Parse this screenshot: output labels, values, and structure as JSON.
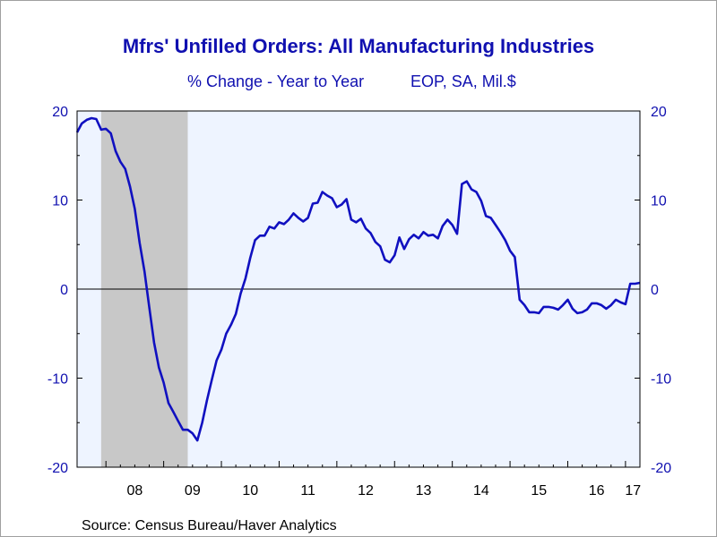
{
  "chart_data": {
    "type": "line",
    "title": "Mfrs' Unfilled Orders: All Manufacturing Industries",
    "subtitle_left": "% Change - Year to Year",
    "subtitle_right": "EOP, SA, Mil.$",
    "source": "Source:  Census Bureau/Haver Analytics",
    "ylim": [
      -20,
      20
    ],
    "yticks": [
      20,
      10,
      0,
      -10,
      -20
    ],
    "xlim": [
      2007.5,
      2017.25
    ],
    "xtick_labels": [
      "08",
      "09",
      "10",
      "11",
      "12",
      "13",
      "14",
      "15",
      "16",
      "17"
    ],
    "recession": [
      2007.917,
      2009.417
    ],
    "grid": false,
    "colors": {
      "line": "#1010c0",
      "plot_bg": "#eef4ff",
      "recession": "#c8c8c8",
      "text": "#1010b0"
    },
    "series": [
      {
        "x": [
          2007.5,
          2007.583,
          2007.667,
          2007.75,
          2007.833,
          2007.917,
          2008.0,
          2008.083,
          2008.167,
          2008.25,
          2008.333,
          2008.417,
          2008.5,
          2008.583,
          2008.667,
          2008.75,
          2008.833,
          2008.917,
          2009.0,
          2009.083,
          2009.167,
          2009.25,
          2009.333,
          2009.417,
          2009.5,
          2009.583,
          2009.667,
          2009.75,
          2009.833,
          2009.917,
          2010.0,
          2010.083,
          2010.167,
          2010.25,
          2010.333,
          2010.417,
          2010.5,
          2010.583,
          2010.667,
          2010.75,
          2010.833,
          2010.917,
          2011.0,
          2011.083,
          2011.167,
          2011.25,
          2011.333,
          2011.417,
          2011.5,
          2011.583,
          2011.667,
          2011.75,
          2011.833,
          2011.917,
          2012.0,
          2012.083,
          2012.167,
          2012.25,
          2012.333,
          2012.417,
          2012.5,
          2012.583,
          2012.667,
          2012.75,
          2012.833,
          2012.917,
          2013.0,
          2013.083,
          2013.167,
          2013.25,
          2013.333,
          2013.417,
          2013.5,
          2013.583,
          2013.667,
          2013.75,
          2013.833,
          2013.917,
          2014.0,
          2014.083,
          2014.167,
          2014.25,
          2014.333,
          2014.417,
          2014.5,
          2014.583,
          2014.667,
          2014.75,
          2014.833,
          2014.917,
          2015.0,
          2015.083,
          2015.167,
          2015.25,
          2015.333,
          2015.417,
          2015.5,
          2015.583,
          2015.667,
          2015.75,
          2015.833,
          2015.917,
          2016.0,
          2016.083,
          2016.167,
          2016.25,
          2016.333,
          2016.417,
          2016.5,
          2016.583,
          2016.667,
          2016.75,
          2016.833,
          2016.917,
          2017.0,
          2017.083,
          2017.167,
          2017.25
        ],
        "values": [
          17.6,
          18.6,
          19.0,
          19.2,
          19.1,
          17.9,
          18.0,
          17.5,
          15.5,
          14.3,
          13.5,
          11.5,
          9.0,
          5.2,
          2.0,
          -2.0,
          -6.0,
          -8.8,
          -10.5,
          -12.8,
          -13.8,
          -14.8,
          -15.8,
          -15.8,
          -16.2,
          -17.0,
          -15.0,
          -12.5,
          -10.2,
          -8.0,
          -6.8,
          -5.0,
          -4.0,
          -2.8,
          -0.5,
          1.2,
          3.5,
          5.5,
          6.0,
          6.0,
          7.0,
          6.8,
          7.5,
          7.3,
          7.8,
          8.5,
          8.0,
          7.6,
          8.0,
          9.6,
          9.7,
          10.9,
          10.5,
          10.2,
          9.2,
          9.5,
          10.1,
          7.8,
          7.5,
          7.9,
          6.8,
          6.3,
          5.3,
          4.8,
          3.3,
          3.0,
          3.8,
          5.8,
          4.5,
          5.6,
          6.1,
          5.7,
          6.4,
          6.0,
          6.1,
          5.7,
          7.1,
          7.8,
          7.2,
          6.2,
          11.8,
          12.1,
          11.2,
          10.9,
          9.9,
          8.2,
          8.0,
          7.2,
          6.4,
          5.5,
          4.3,
          3.6,
          -1.2,
          -1.8,
          -2.6,
          -2.6,
          -2.7,
          -2.0,
          -2.0,
          -2.1,
          -2.3,
          -1.8,
          -1.2,
          -2.2,
          -2.7,
          -2.6,
          -2.3,
          -1.6,
          -1.6,
          -1.8,
          -2.2,
          -1.8,
          -1.2,
          -1.5,
          -1.7,
          0.6,
          0.6,
          0.7
        ]
      }
    ]
  }
}
